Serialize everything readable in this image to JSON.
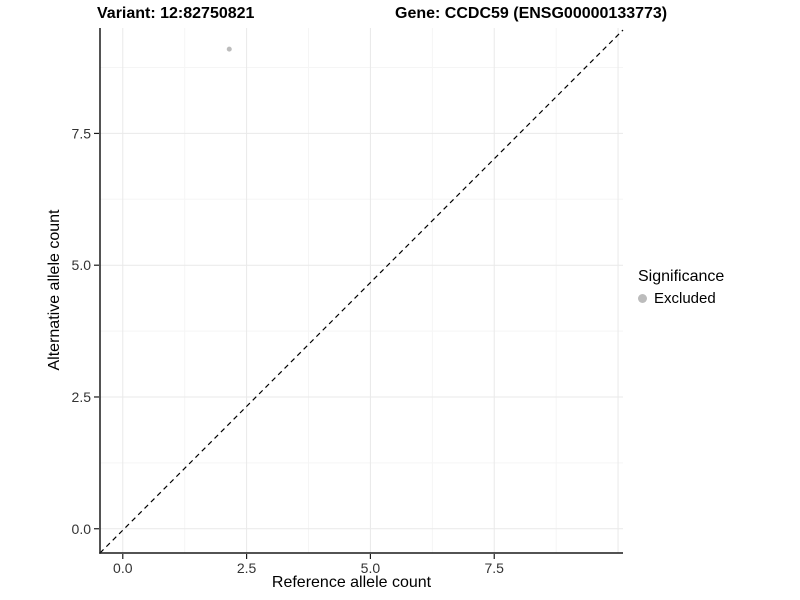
{
  "titles": {
    "variant": "Variant: 12:82750821",
    "gene": "Gene: CCDC59 (ENSG00000133773)"
  },
  "chart_data": {
    "type": "scatter",
    "xlabel": "Reference allele count",
    "ylabel": "Alternative allele count",
    "x_ticks": {
      "values": [
        0,
        2.5,
        5,
        7.5
      ],
      "labels": [
        "0.0",
        "2.5",
        "5.0",
        "7.5"
      ]
    },
    "y_ticks": {
      "values": [
        0,
        2.5,
        5,
        7.5
      ],
      "labels": [
        "0.0",
        "2.5",
        "5.0",
        "7.5"
      ]
    },
    "xlim": [
      -0.46,
      10.1
    ],
    "ylim": [
      -0.46,
      9.5
    ],
    "grid": {
      "major": true,
      "minor": true
    },
    "series": [
      {
        "name": "Excluded",
        "color": "#bcbcbc",
        "points": [
          {
            "x": 2.15,
            "y": 9.1
          }
        ]
      }
    ],
    "abline": {
      "slope": 1,
      "intercept": 0,
      "linetype": "dashed",
      "color": "#000000"
    },
    "legend": {
      "title": "Significance",
      "position": "right",
      "entries": [
        {
          "label": "Excluded",
          "color": "#bcbcbc"
        }
      ]
    }
  },
  "colors": {
    "grid_major": "#e9e9e9",
    "grid_minor": "#f5f5f5",
    "axis_line": "#1a1a1a",
    "tick_text": "#333333"
  }
}
